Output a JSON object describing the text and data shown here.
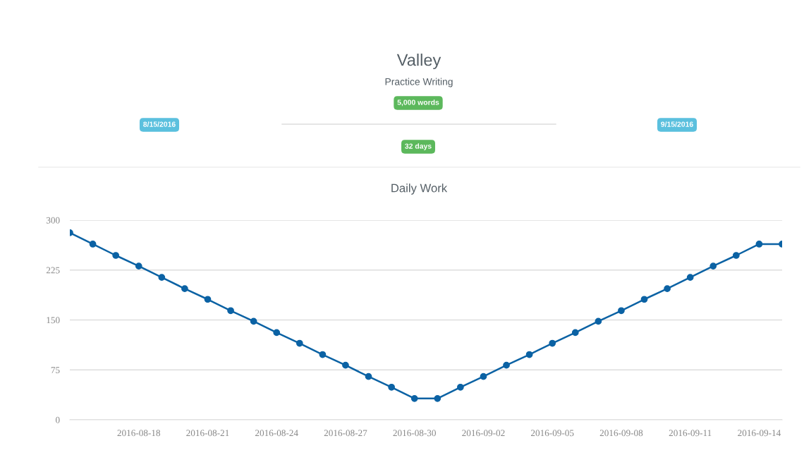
{
  "chart_data": {
    "type": "line",
    "title": "Valley",
    "subtitle": "Practice Writing",
    "annotations": [
      "5,000 words",
      "8/15/2016",
      "9/15/2016",
      "32 days",
      "Daily Work"
    ],
    "x": [
      "2016-08-15",
      "2016-08-16",
      "2016-08-17",
      "2016-08-18",
      "2016-08-19",
      "2016-08-20",
      "2016-08-21",
      "2016-08-22",
      "2016-08-23",
      "2016-08-24",
      "2016-08-25",
      "2016-08-26",
      "2016-08-27",
      "2016-08-28",
      "2016-08-29",
      "2016-08-30",
      "2016-08-31",
      "2016-09-01",
      "2016-09-02",
      "2016-09-03",
      "2016-09-04",
      "2016-09-05",
      "2016-09-06",
      "2016-09-07",
      "2016-09-08",
      "2016-09-09",
      "2016-09-10",
      "2016-09-11",
      "2016-09-12",
      "2016-09-13",
      "2016-09-14",
      "2016-09-15"
    ],
    "series": [
      {
        "color": "#0b62a4",
        "values": [
          281,
          264,
          247,
          231,
          214,
          197,
          181,
          164,
          148,
          131,
          115,
          98,
          82,
          65,
          49,
          32,
          32,
          49,
          65,
          82,
          98,
          115,
          131,
          148,
          164,
          181,
          197,
          214,
          231,
          247,
          264,
          264
        ]
      }
    ],
    "xlim": [
      "2016-08-15",
      "2016-09-15"
    ],
    "xticks": [
      "2016-08-18",
      "2016-08-21",
      "2016-08-24",
      "2016-08-27",
      "2016-08-30",
      "2016-09-02",
      "2016-09-05",
      "2016-09-08",
      "2016-09-11",
      "2016-09-14"
    ],
    "ylim": [
      0,
      300
    ],
    "yticks": [
      0,
      75,
      150,
      225,
      300
    ],
    "grid": "y",
    "legend": false,
    "marker": "circle",
    "line_style": "solid"
  }
}
